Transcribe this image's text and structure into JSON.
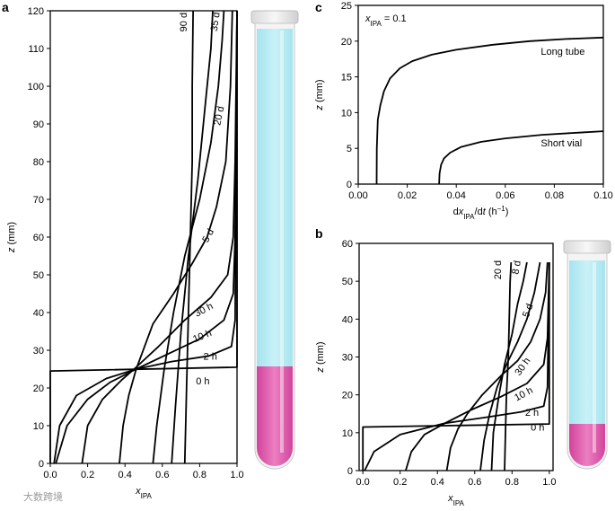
{
  "watermark": "大数跨境",
  "chart_data": [
    {
      "panel": "a",
      "type": "line",
      "xlabel": "x_IPA",
      "xlabel_main": "x",
      "xlabel_sub": "IPA",
      "ylabel": "z (mm)",
      "xlim": [
        0,
        1.0
      ],
      "ylim": [
        0,
        120
      ],
      "xticks": [
        "0.0",
        "0.2",
        "0.4",
        "0.6",
        "0.8",
        "1.0"
      ],
      "yticks": [
        "0",
        "10",
        "20",
        "30",
        "40",
        "50",
        "60",
        "70",
        "80",
        "90",
        "100",
        "110",
        "120"
      ],
      "illustration": "tall-test-tube",
      "series": [
        {
          "name": "0 h",
          "label_at": [
            0.78,
            21
          ],
          "label_rot": 0,
          "points": [
            [
              0.0,
              0
            ],
            [
              0.0,
              24.5
            ],
            [
              1.0,
              25.5
            ],
            [
              1.0,
              120
            ]
          ]
        },
        {
          "name": "2 h",
          "label_at": [
            0.82,
            27.5
          ],
          "label_rot": 0,
          "points": [
            [
              0.02,
              0
            ],
            [
              0.05,
              10
            ],
            [
              0.14,
              18
            ],
            [
              0.3,
              22.5
            ],
            [
              0.46,
              25
            ],
            [
              0.65,
              27
            ],
            [
              0.85,
              28.5
            ],
            [
              0.97,
              31
            ],
            [
              0.99,
              38
            ],
            [
              1.0,
              120
            ]
          ]
        },
        {
          "name": "10 h",
          "label_at": [
            0.82,
            33
          ],
          "label_rot": -22,
          "points": [
            [
              0.03,
              0
            ],
            [
              0.09,
              10
            ],
            [
              0.2,
              17
            ],
            [
              0.32,
              21.5
            ],
            [
              0.46,
              25
            ],
            [
              0.63,
              29
            ],
            [
              0.8,
              33
            ],
            [
              0.93,
              38
            ],
            [
              0.98,
              45
            ],
            [
              0.99,
              60
            ],
            [
              1.0,
              120
            ]
          ]
        },
        {
          "name": "30 h",
          "label_at": [
            0.83,
            40
          ],
          "label_rot": -28,
          "points": [
            [
              0.17,
              0
            ],
            [
              0.2,
              10
            ],
            [
              0.28,
              17
            ],
            [
              0.38,
              22
            ],
            [
              0.46,
              25.5
            ],
            [
              0.58,
              31
            ],
            [
              0.72,
              38
            ],
            [
              0.86,
              44
            ],
            [
              0.95,
              50
            ],
            [
              0.98,
              60
            ],
            [
              0.99,
              80
            ],
            [
              1.0,
              120
            ]
          ]
        },
        {
          "name": "5 d",
          "label_at": [
            0.86,
            60
          ],
          "label_rot": -62,
          "points": [
            [
              0.37,
              0
            ],
            [
              0.39,
              10
            ],
            [
              0.42,
              18
            ],
            [
              0.46,
              25
            ],
            [
              0.55,
              37
            ],
            [
              0.66,
              45
            ],
            [
              0.76,
              53
            ],
            [
              0.84,
              60
            ],
            [
              0.89,
              68
            ],
            [
              0.94,
              80
            ],
            [
              0.965,
              100
            ],
            [
              0.975,
              120
            ]
          ]
        },
        {
          "name": "20 d",
          "label_at": [
            0.92,
            92
          ],
          "label_rot": -78,
          "points": [
            [
              0.55,
              0
            ],
            [
              0.57,
              10
            ],
            [
              0.61,
              25
            ],
            [
              0.66,
              40
            ],
            [
              0.72,
              55
            ],
            [
              0.8,
              70
            ],
            [
              0.86,
              85
            ],
            [
              0.9,
              100
            ],
            [
              0.92,
              112
            ],
            [
              0.93,
              120
            ]
          ]
        },
        {
          "name": "35 d",
          "label_at": [
            0.9,
            117
          ],
          "label_rot": -82,
          "points": [
            [
              0.65,
              0
            ],
            [
              0.67,
              15
            ],
            [
              0.7,
              35
            ],
            [
              0.74,
              55
            ],
            [
              0.79,
              75
            ],
            [
              0.83,
              95
            ],
            [
              0.86,
              110
            ],
            [
              0.87,
              120
            ]
          ]
        },
        {
          "name": "90 d",
          "label_at": [
            0.73,
            117
          ],
          "label_rot": -90,
          "points": [
            [
              0.72,
              0
            ],
            [
              0.73,
              20
            ],
            [
              0.74,
              40
            ],
            [
              0.75,
              60
            ],
            [
              0.76,
              80
            ],
            [
              0.76,
              100
            ],
            [
              0.765,
              120
            ]
          ]
        }
      ]
    },
    {
      "panel": "b",
      "type": "line",
      "xlabel": "x_IPA",
      "xlabel_main": "x",
      "xlabel_sub": "IPA",
      "ylabel": "z (mm)",
      "xlim": [
        -0.02,
        1.02
      ],
      "ylim": [
        0,
        60
      ],
      "xticks": [
        "0.0",
        "0.2",
        "0.4",
        "0.6",
        "0.8",
        "1.0"
      ],
      "yticks": [
        "0",
        "10",
        "20",
        "30",
        "40",
        "50",
        "60"
      ],
      "illustration": "short-vial",
      "series": [
        {
          "name": "0 h",
          "label_at": [
            0.9,
            10.5
          ],
          "label_rot": 0,
          "points": [
            [
              0.0,
              0
            ],
            [
              0.0,
              11.5
            ],
            [
              1.0,
              12.3
            ],
            [
              1.0,
              55
            ]
          ]
        },
        {
          "name": "2 h",
          "label_at": [
            0.87,
            14.5
          ],
          "label_rot": 0,
          "points": [
            [
              0.01,
              0
            ],
            [
              0.06,
              5
            ],
            [
              0.2,
              9.5
            ],
            [
              0.44,
              12.5
            ],
            [
              0.65,
              14
            ],
            [
              0.85,
              15.5
            ],
            [
              0.97,
              17
            ],
            [
              0.99,
              22
            ],
            [
              1.0,
              55
            ]
          ]
        },
        {
          "name": "10 h",
          "label_at": [
            0.87,
            19.5
          ],
          "label_rot": -28,
          "points": [
            [
              0.23,
              0
            ],
            [
              0.26,
              5
            ],
            [
              0.33,
              9.5
            ],
            [
              0.44,
              12.5
            ],
            [
              0.58,
              16
            ],
            [
              0.74,
              19.5
            ],
            [
              0.88,
              23
            ],
            [
              0.97,
              28
            ],
            [
              0.99,
              35
            ],
            [
              1.0,
              55
            ]
          ]
        },
        {
          "name": "30 h",
          "label_at": [
            0.87,
            27
          ],
          "label_rot": -55,
          "points": [
            [
              0.45,
              0
            ],
            [
              0.47,
              6
            ],
            [
              0.51,
              11
            ],
            [
              0.56,
              15
            ],
            [
              0.64,
              20
            ],
            [
              0.74,
              25
            ],
            [
              0.83,
              29
            ],
            [
              0.9,
              34
            ],
            [
              0.95,
              40
            ],
            [
              0.98,
              47
            ],
            [
              0.99,
              55
            ]
          ]
        },
        {
          "name": "5 d",
          "label_at": [
            0.9,
            42
          ],
          "label_rot": -70,
          "points": [
            [
              0.63,
              0
            ],
            [
              0.65,
              8
            ],
            [
              0.68,
              15
            ],
            [
              0.72,
              22
            ],
            [
              0.77,
              28
            ],
            [
              0.83,
              34
            ],
            [
              0.88,
              40
            ],
            [
              0.92,
              47
            ],
            [
              0.95,
              55
            ]
          ]
        },
        {
          "name": "8 d",
          "label_at": [
            0.84,
            53.5
          ],
          "label_rot": -80,
          "points": [
            [
              0.69,
              0
            ],
            [
              0.7,
              10
            ],
            [
              0.73,
              20
            ],
            [
              0.76,
              28
            ],
            [
              0.8,
              36
            ],
            [
              0.83,
              44
            ],
            [
              0.86,
              50
            ],
            [
              0.88,
              55
            ]
          ]
        },
        {
          "name": "20 d",
          "label_at": [
            0.74,
            53
          ],
          "label_rot": -90,
          "points": [
            [
              0.76,
              0
            ],
            [
              0.765,
              10
            ],
            [
              0.77,
              20
            ],
            [
              0.78,
              30
            ],
            [
              0.785,
              40
            ],
            [
              0.79,
              50
            ],
            [
              0.795,
              55
            ]
          ]
        }
      ]
    },
    {
      "panel": "c",
      "type": "line",
      "annotation": "x_IPA = 0.1",
      "annotation_main": "x",
      "annotation_sub": "IPA",
      "annotation_rest": " = 0.1",
      "xlabel": "dx_IPA/dt (h^-1)",
      "xlabel_parts": [
        "dx",
        "IPA",
        "/d",
        "t",
        " (h",
        "−1",
        ")"
      ],
      "ylabel": "z (mm)",
      "xlim": [
        0,
        0.1
      ],
      "ylim": [
        0,
        25
      ],
      "xticks": [
        "0.00",
        "0.02",
        "0.04",
        "0.06",
        "0.08",
        "0.10"
      ],
      "yticks": [
        "0",
        "5",
        "10",
        "15",
        "20",
        "25"
      ],
      "series": [
        {
          "name": "Long tube",
          "label_at": [
            0.0745,
            18.1
          ],
          "points": [
            [
              0.0075,
              0
            ],
            [
              0.0076,
              5
            ],
            [
              0.008,
              9
            ],
            [
              0.009,
              11
            ],
            [
              0.0105,
              13
            ],
            [
              0.013,
              14.8
            ],
            [
              0.017,
              16.2
            ],
            [
              0.022,
              17.2
            ],
            [
              0.03,
              18.1
            ],
            [
              0.04,
              18.8
            ],
            [
              0.055,
              19.5
            ],
            [
              0.07,
              20
            ],
            [
              0.085,
              20.3
            ],
            [
              0.1,
              20.5
            ]
          ]
        },
        {
          "name": "Short vial",
          "label_at": [
            0.0745,
            5.3
          ],
          "points": [
            [
              0.033,
              0
            ],
            [
              0.0332,
              1.5
            ],
            [
              0.0338,
              2.7
            ],
            [
              0.035,
              3.6
            ],
            [
              0.0375,
              4.4
            ],
            [
              0.042,
              5.2
            ],
            [
              0.05,
              5.9
            ],
            [
              0.06,
              6.4
            ],
            [
              0.075,
              6.9
            ],
            [
              0.09,
              7.2
            ],
            [
              0.1,
              7.4
            ]
          ]
        }
      ]
    }
  ]
}
